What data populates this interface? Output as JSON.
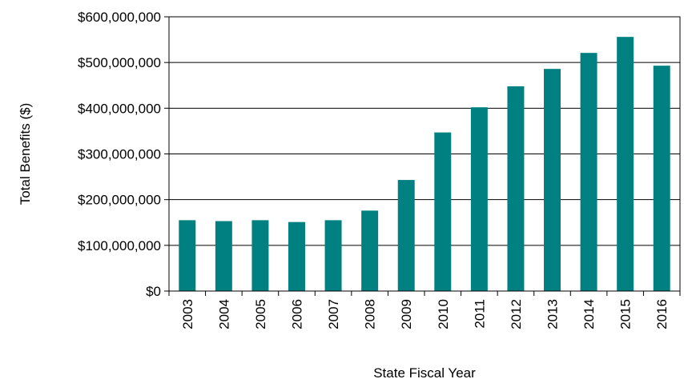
{
  "chart_data": {
    "type": "bar",
    "title": "",
    "xlabel": "State Fiscal Year",
    "ylabel": "Total Benefits ($)",
    "categories": [
      "2003",
      "2004",
      "2005",
      "2006",
      "2007",
      "2008",
      "2009",
      "2010",
      "2011",
      "2012",
      "2013",
      "2014",
      "2015",
      "2016"
    ],
    "values": [
      155000000,
      153000000,
      155000000,
      151000000,
      155000000,
      176000000,
      243000000,
      347000000,
      402000000,
      448000000,
      486000000,
      521000000,
      556000000,
      493000000
    ],
    "ylim": [
      0,
      600000000
    ],
    "yticks": [
      0,
      100000000,
      200000000,
      300000000,
      400000000,
      500000000,
      600000000
    ],
    "ytick_labels": [
      "$0",
      "$100,000,000",
      "$200,000,000",
      "$300,000,000",
      "$400,000,000",
      "$500,000,000",
      "$600,000,000"
    ],
    "grid": true,
    "bar_color": "#008080"
  }
}
